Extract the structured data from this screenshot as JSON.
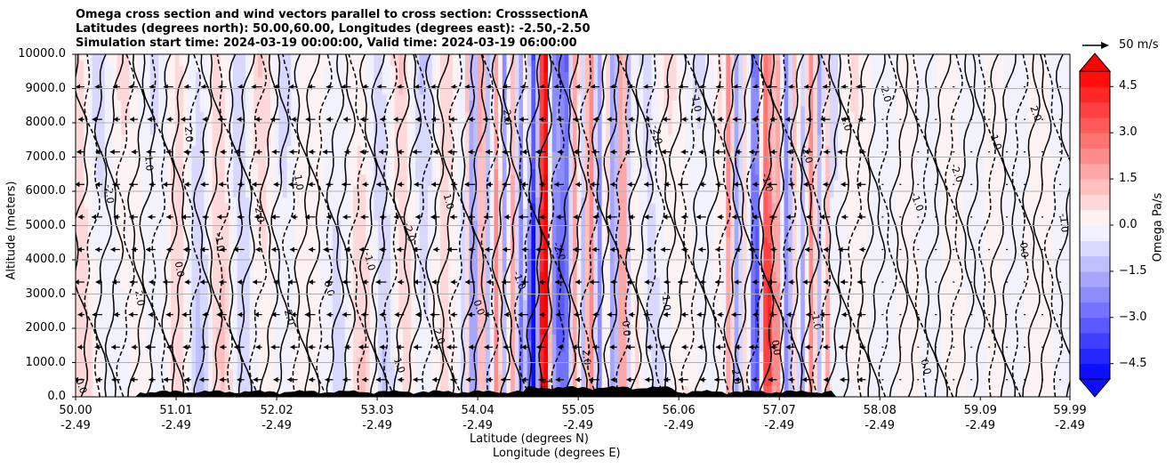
{
  "chart_data": {
    "type": "heatmap",
    "title_lines": [
      "Omega cross section and wind vectors parallel to cross section: CrosssectionA",
      "Latitudes (degrees north): 50.00,60.00, Longitudes (degrees east): -2.50,-2.50",
      "Simulation start time: 2024-03-19 00:00:00, Valid time: 2024-03-19 06:00:00"
    ],
    "xlabel": "Latitude (degrees N)",
    "xlabel2": "Longitude (degrees E)",
    "ylabel": "Altitude (meters)",
    "x_ticks": [
      {
        "lat": "50.00",
        "lon": "-2.49",
        "value": 50.0
      },
      {
        "lat": "51.01",
        "lon": "-2.49",
        "value": 51.01
      },
      {
        "lat": "52.02",
        "lon": "-2.49",
        "value": 52.02
      },
      {
        "lat": "53.03",
        "lon": "-2.49",
        "value": 53.03
      },
      {
        "lat": "54.04",
        "lon": "-2.49",
        "value": 54.04
      },
      {
        "lat": "55.05",
        "lon": "-2.49",
        "value": 55.05
      },
      {
        "lat": "56.06",
        "lon": "-2.49",
        "value": 56.06
      },
      {
        "lat": "57.07",
        "lon": "-2.49",
        "value": 57.07
      },
      {
        "lat": "58.08",
        "lon": "-2.49",
        "value": 58.08
      },
      {
        "lat": "59.09",
        "lon": "-2.49",
        "value": 59.09
      },
      {
        "lat": "59.99",
        "lon": "-2.49",
        "value": 59.99
      }
    ],
    "y_ticks": [
      "0.0",
      "1000.0",
      "2000.0",
      "3000.0",
      "4000.0",
      "5000.0",
      "6000.0",
      "7000.0",
      "8000.0",
      "9000.0",
      "10000.0"
    ],
    "xlim": [
      50.0,
      59.99
    ],
    "ylim": [
      0,
      10000
    ],
    "grid": "horizontal",
    "colorbar": {
      "label": "Omega Pa/s",
      "ticks": [
        "4.5",
        "3.0",
        "1.5",
        "0.0",
        "−1.5",
        "−3.0",
        "−4.5"
      ],
      "range": [
        -5.0,
        5.0
      ],
      "extend": "both",
      "cmap": "bwr"
    },
    "quiver_key": "50 m/s",
    "contour_labels": [
      "0.0",
      "1.0",
      "-1.0",
      "2.0",
      "-2.0"
    ],
    "strong_cells": [
      {
        "lat": 54.58,
        "omega": -5.0
      },
      {
        "lat": 54.72,
        "omega": 5.0
      },
      {
        "lat": 54.86,
        "omega": -5.0
      },
      {
        "lat": 56.87,
        "omega": -4.0
      },
      {
        "lat": 56.96,
        "omega": 5.0
      }
    ]
  },
  "colors": {
    "positive": "#ff0000",
    "negative": "#0000ff",
    "neutral": "#ffffff",
    "contour": "#000000"
  }
}
